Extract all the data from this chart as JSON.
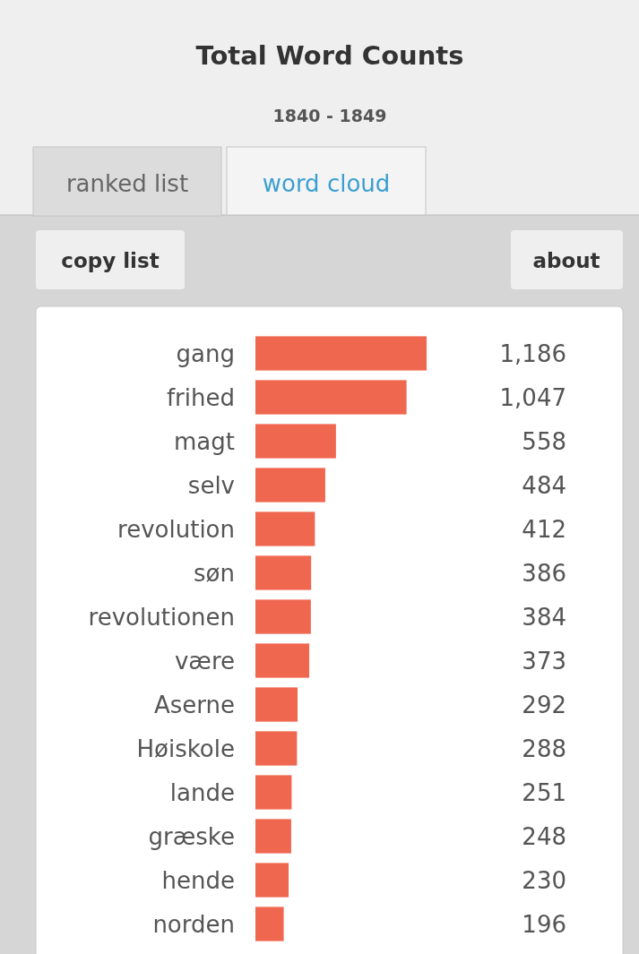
{
  "chart_data": {
    "type": "bar",
    "orientation": "horizontal",
    "title": "Total Word Counts",
    "subtitle": "1840 - 1849",
    "annotations": [
      "ranked list",
      "word cloud",
      "copy list",
      "about"
    ],
    "categories": [
      "gang",
      "frihed",
      "magt",
      "selv",
      "revolution",
      "søn",
      "revolutionen",
      "være",
      "Aserne",
      "Høiskole",
      "lande",
      "græske",
      "hende",
      "norden"
    ],
    "values": [
      1186,
      1047,
      558,
      484,
      412,
      386,
      384,
      373,
      292,
      288,
      251,
      248,
      230,
      196
    ],
    "value_labels": [
      "1,186",
      "1,047",
      "558",
      "484",
      "412",
      "386",
      "384",
      "373",
      "292",
      "288",
      "251",
      "248",
      "230",
      "196"
    ],
    "color": "#f0674f"
  }
}
